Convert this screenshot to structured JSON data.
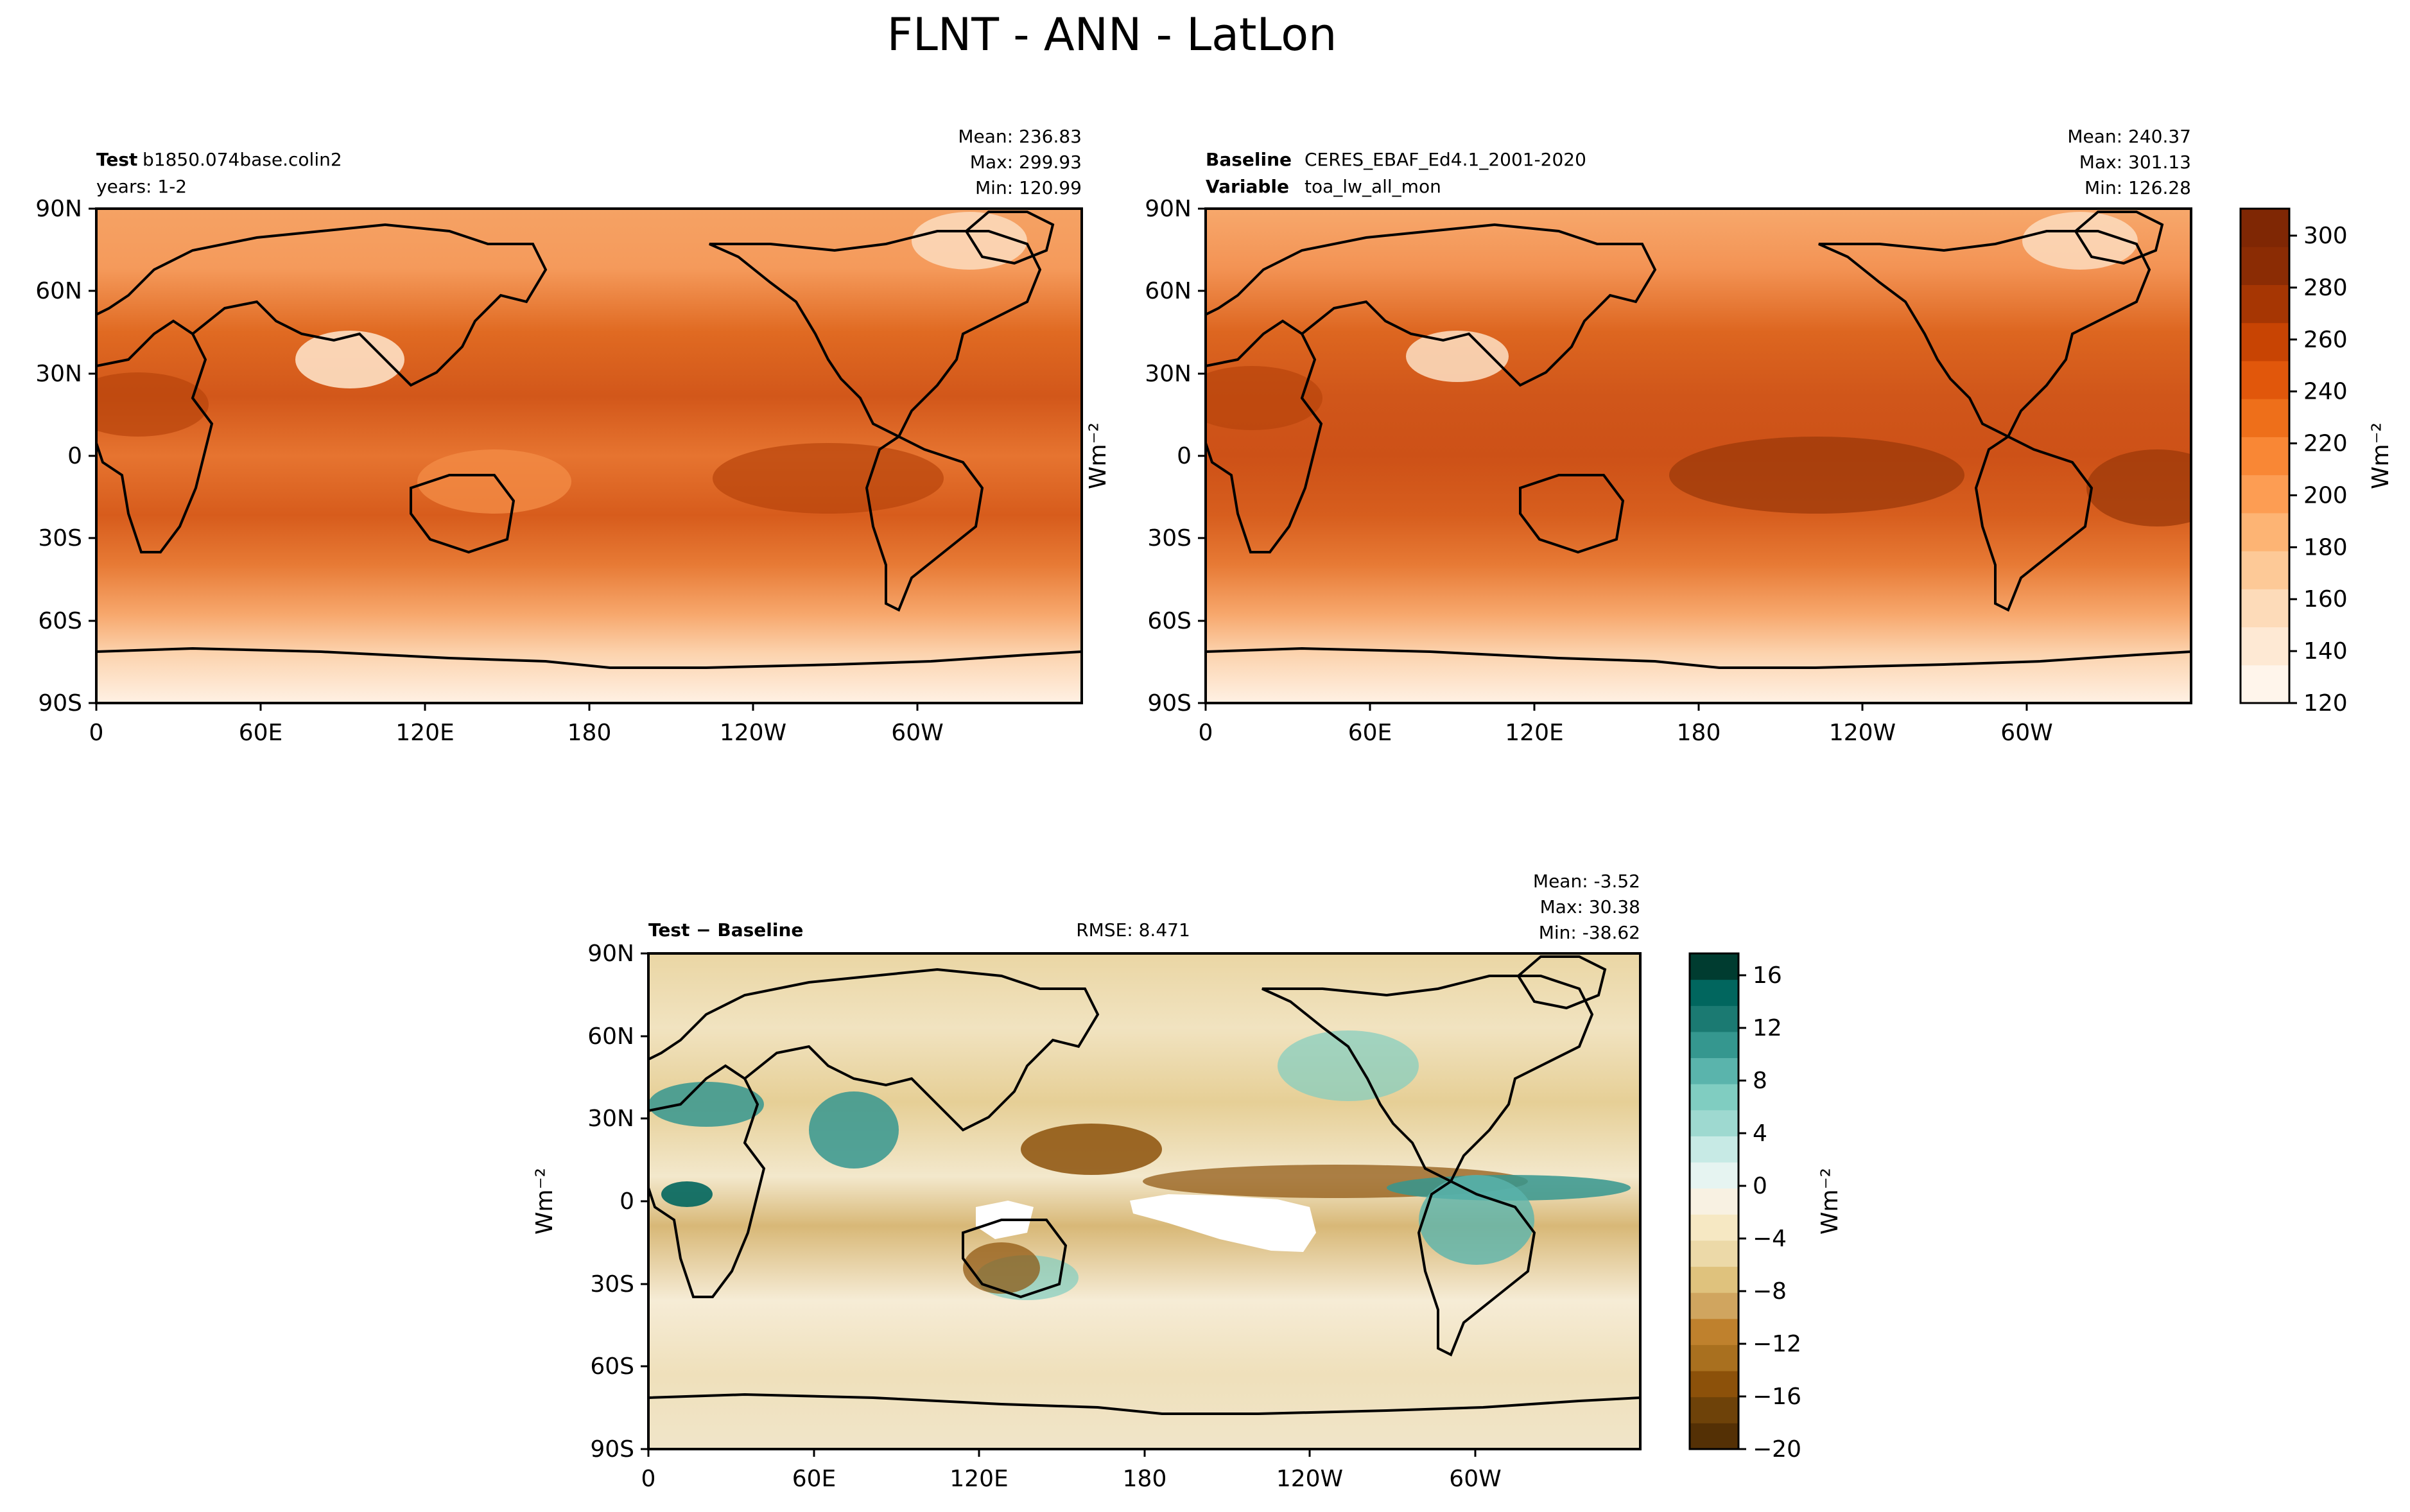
{
  "figure": {
    "title": "FLNT - ANN - LatLon"
  },
  "lat_ticks": [
    "90N",
    "60N",
    "30N",
    "0",
    "30S",
    "60S",
    "90S"
  ],
  "lon_ticks": [
    "0",
    "60E",
    "120E",
    "180",
    "120W",
    "60W"
  ],
  "test_panel": {
    "label_bold": "Test",
    "label_value": "b1850.074base.colin2",
    "line2": "years: 1-2",
    "mean": "Mean: 236.83",
    "max": "Max: 299.93",
    "min": "Min: 120.99"
  },
  "baseline_panel": {
    "label_bold": "Baseline",
    "label_value": "CERES_EBAF_Ed4.1_2001-2020",
    "label2_bold": "Variable",
    "label2_value": "toa_lw_all_mon",
    "mean": "Mean: 240.37",
    "max": "Max: 301.13",
    "min": "Min: 126.28",
    "ylabel": "Wm⁻²"
  },
  "diff_panel": {
    "label_bold": "Test − Baseline",
    "rmse": "RMSE: 8.471",
    "mean": "Mean: -3.52",
    "max": "Max: 30.38",
    "min": "Min: -38.62",
    "ylabel": "Wm⁻²"
  },
  "colorbar_top": {
    "label": "Wm⁻²",
    "ticks": [
      "300",
      "280",
      "260",
      "240",
      "220",
      "200",
      "180",
      "160",
      "140",
      "120"
    ],
    "colors": [
      "#fff5eb",
      "#fee9d4",
      "#fddbb9",
      "#fdc997",
      "#fdb474",
      "#fd9d53",
      "#f98735",
      "#ee6f1a",
      "#e1570b",
      "#c84403",
      "#a63603",
      "#8b2c04",
      "#7f2704"
    ]
  },
  "colorbar_diff": {
    "label": "Wm⁻²",
    "ticks": [
      "16",
      "12",
      "8",
      "4",
      "0",
      "−4",
      "−8",
      "−12",
      "−16",
      "−20"
    ],
    "colors": [
      "#543005",
      "#6e4209",
      "#8c510a",
      "#a9701f",
      "#bf812d",
      "#d0a55f",
      "#dfc27d",
      "#ecd9a8",
      "#f6e8c3",
      "#f8f1e2",
      "#e6f4f1",
      "#c7eae5",
      "#9ed9d0",
      "#80cdc1",
      "#5ab4ac",
      "#35978f",
      "#1b7a72",
      "#01665e",
      "#003c30"
    ]
  }
}
